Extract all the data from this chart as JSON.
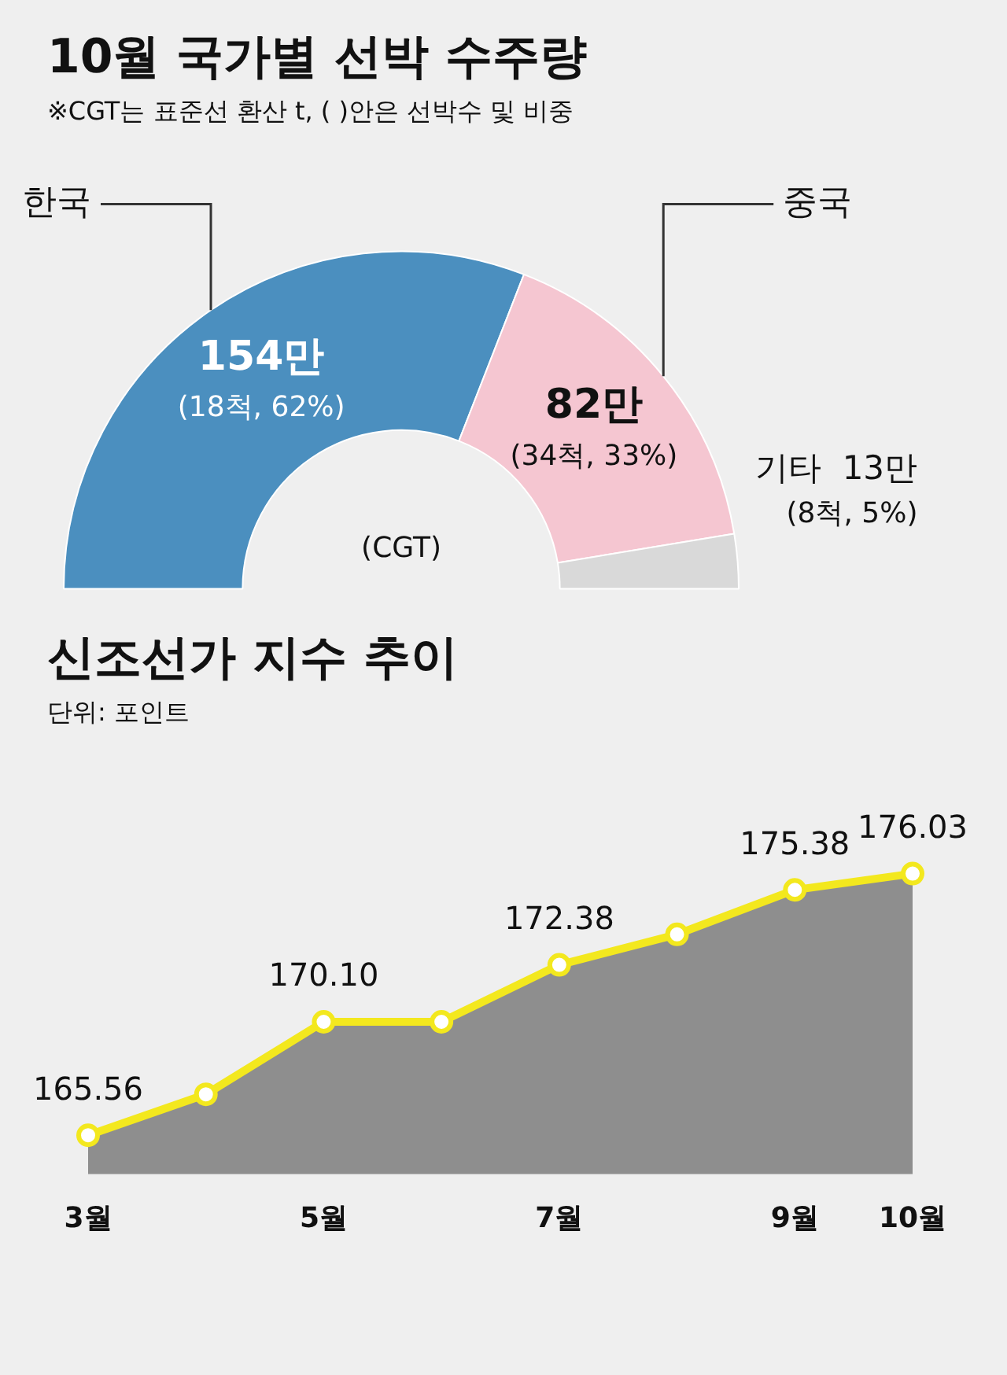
{
  "chart_data": [
    {
      "type": "donut",
      "title": "10월 국가별 선박 수주량",
      "subtitle": "※CGT는 표준선 환산 t, ( )안은 선박수 및 비중",
      "categories": [
        "한국",
        "중국",
        "기타"
      ],
      "values": [
        154,
        82,
        13
      ],
      "colors": [
        "#4b8fbf",
        "#f5c6d1",
        "#d9d9d9"
      ],
      "value_labels": [
        "154만\n(18척, 62%)",
        "82만\n(34척, 33%)",
        "13만\n(8척, 5%)"
      ],
      "annotations": [
        "(CGT)"
      ],
      "legend": false
    },
    {
      "type": "area",
      "title": "신조선가 지수 추이",
      "subtitle": "단위: 포인트",
      "categories": [
        "3월",
        null,
        "5월",
        null,
        "7월",
        null,
        "9월",
        "10월"
      ],
      "series": [
        {
          "color": "#f3e81e",
          "values": [
            165.56,
            167.2,
            170.1,
            170.1,
            172.38,
            173.6,
            175.38,
            176.03
          ],
          "value_labels": [
            "165.56",
            null,
            "170.10",
            null,
            "172.38",
            null,
            "175.38",
            "176.03"
          ]
        }
      ],
      "tick_labels": "x",
      "marker": "circle",
      "grid": false,
      "legend": false
    }
  ]
}
